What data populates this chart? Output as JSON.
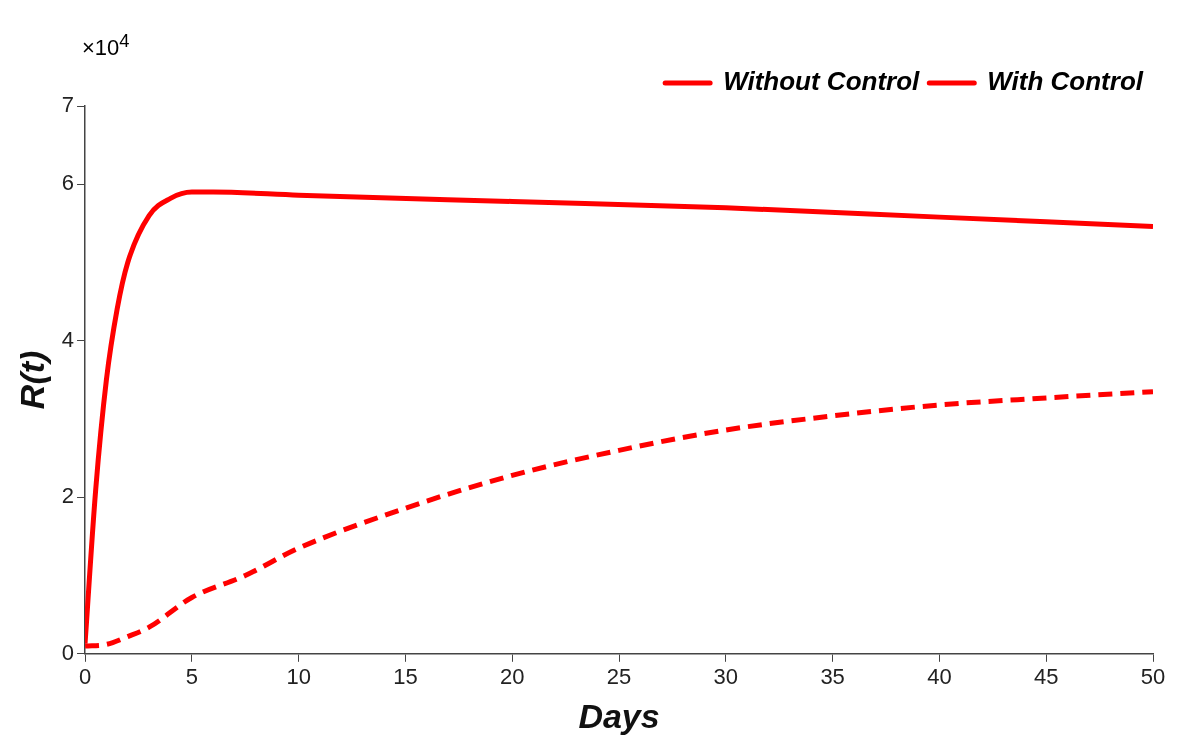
{
  "chart_data": {
    "type": "line",
    "xlabel": "Days",
    "ylabel": "R(t)",
    "annotations": [
      "×10$^{4}$"
    ],
    "xlim": [
      0,
      50
    ],
    "xticks": [
      0,
      5,
      10,
      15,
      20,
      25,
      30,
      35,
      40,
      45,
      50
    ],
    "ylim": [
      0,
      7
    ],
    "yticks": [
      0,
      2,
      4,
      6,
      7
    ],
    "grid": false,
    "legend": "top right",
    "marker": "none",
    "series": [
      {
        "name": "Without Control",
        "color": "#ff0000",
        "line_style": "dashed",
        "x": [
          0,
          1,
          2,
          3,
          5,
          7.5,
          10,
          15,
          20,
          25,
          30,
          35,
          40,
          45,
          50
        ],
        "values": [
          0.1,
          0.12,
          0.22,
          0.34,
          0.72,
          1.0,
          1.35,
          1.86,
          2.28,
          2.6,
          2.86,
          3.04,
          3.18,
          3.27,
          3.35
        ]
      },
      {
        "name": "With Control",
        "color": "#ff0000",
        "line_style": "solid",
        "x": [
          0,
          0.5,
          1,
          1.5,
          2,
          3,
          4,
          5,
          6,
          10,
          20,
          30,
          40,
          50
        ],
        "values": [
          0.13,
          2.1,
          3.5,
          4.4,
          5.0,
          5.6,
          5.82,
          5.9,
          5.9,
          5.86,
          5.78,
          5.7,
          5.58,
          5.46
        ]
      }
    ]
  }
}
